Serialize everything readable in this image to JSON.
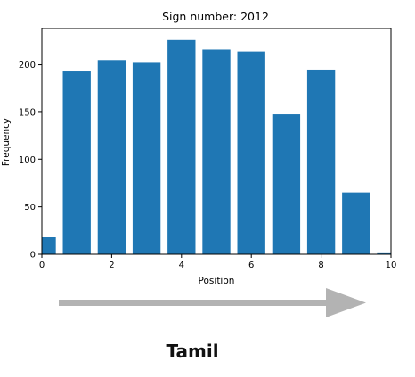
{
  "chart_data": {
    "type": "bar",
    "title": "Sign number: 2012",
    "xlabel": "Position",
    "ylabel": "Frequency",
    "xlim": [
      0,
      10
    ],
    "ylim": [
      0,
      238
    ],
    "xticks": [
      0,
      2,
      4,
      6,
      8,
      10
    ],
    "yticks": [
      0,
      50,
      100,
      150,
      200
    ],
    "grid": false,
    "bar_color": "#1f77b4",
    "x": [
      0,
      1,
      2,
      3,
      4,
      5,
      6,
      7,
      8,
      9,
      10
    ],
    "values": [
      18,
      193,
      204,
      202,
      226,
      216,
      214,
      148,
      194,
      65,
      2
    ]
  },
  "arrow": {
    "icon": "right-arrow-icon",
    "color": "#b3b3b3"
  },
  "caption": "Tamil"
}
